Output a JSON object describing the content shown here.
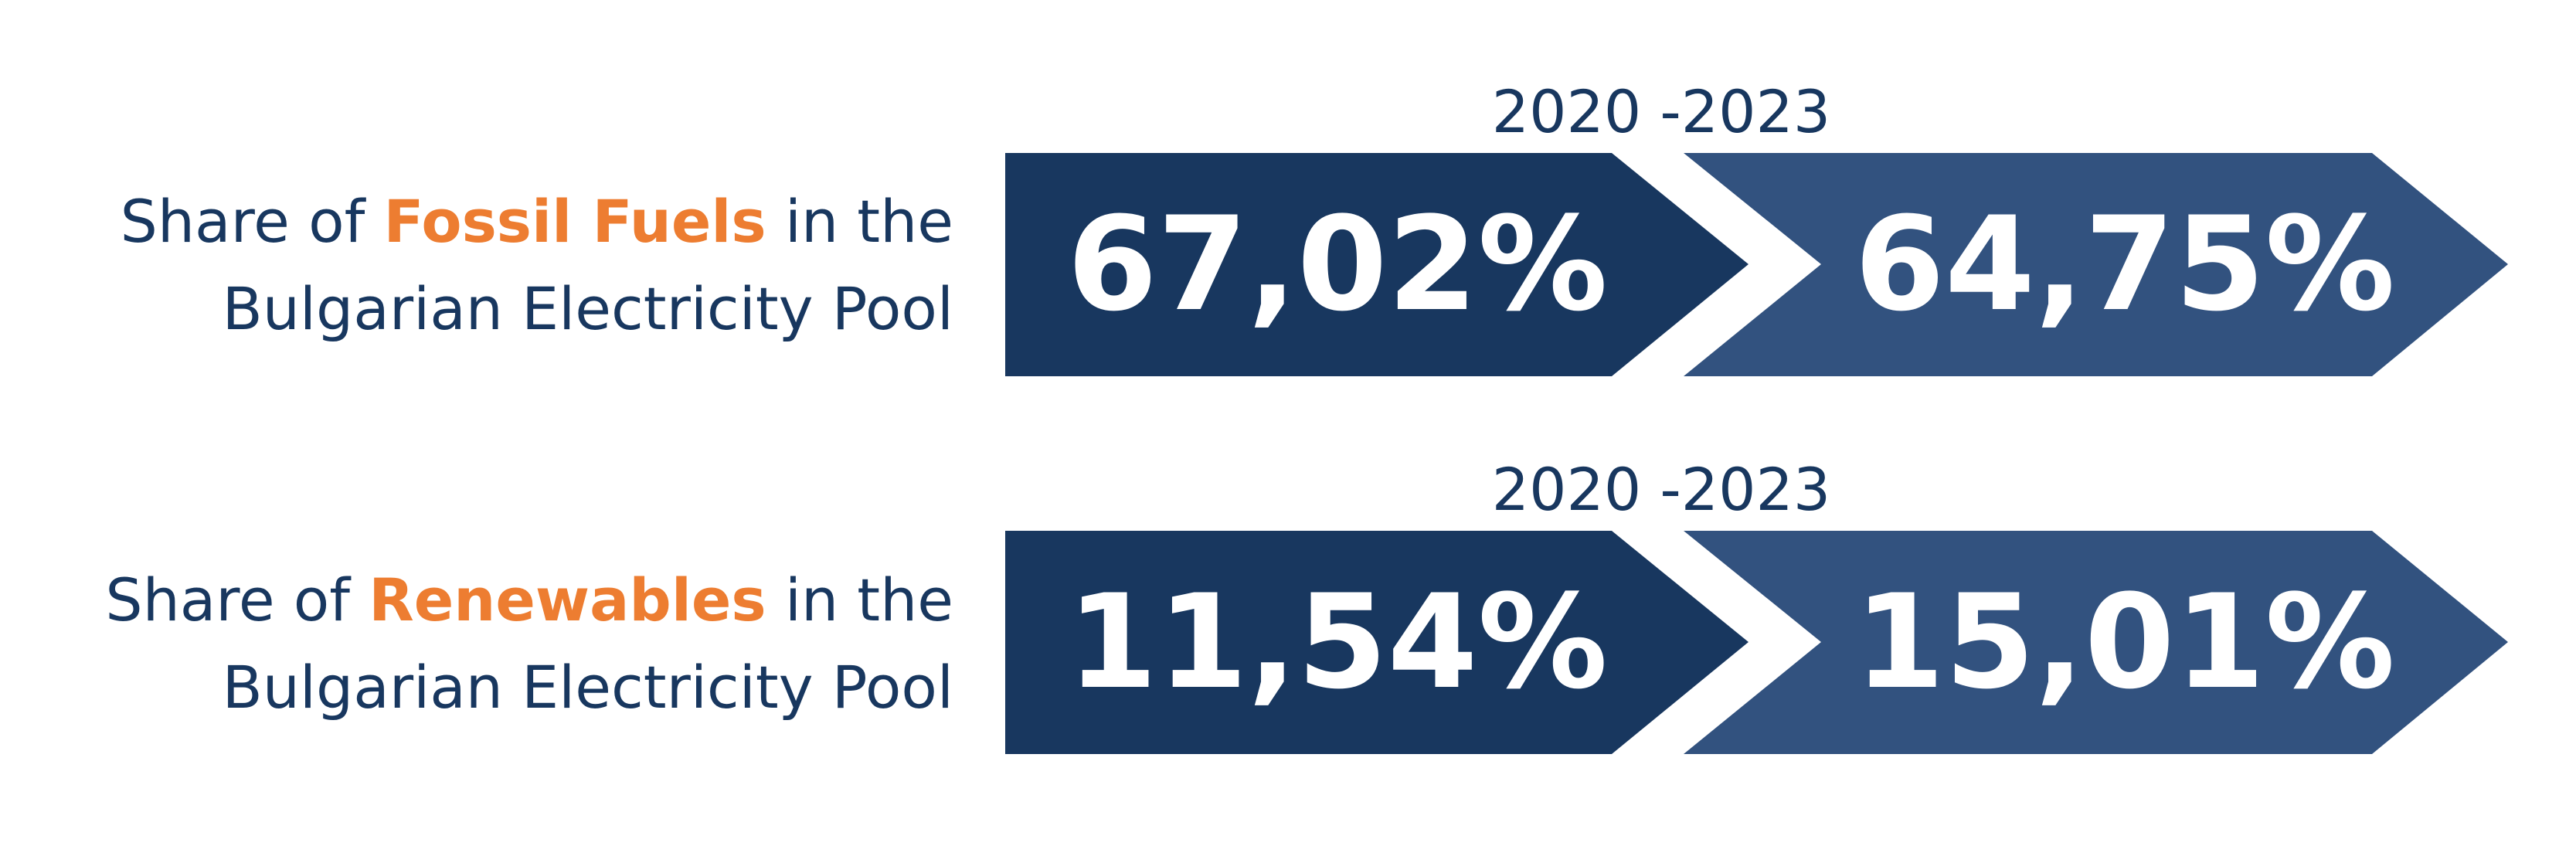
{
  "rows": [
    {
      "label_prefix": "Share of ",
      "label_highlight": "Fossil Fuels",
      "label_suffix": " in the",
      "label_line2": "Bulgarian Electricity Pool",
      "period": "2020 -2023",
      "value_start": "67,02%",
      "value_end": "64,75%"
    },
    {
      "label_prefix": "Share of ",
      "label_highlight": "Renewables",
      "label_suffix": " in the",
      "label_line2": "Bulgarian Electricity Pool",
      "period": "2020 -2023",
      "value_start": "11,54%",
      "value_end": "15,01%"
    }
  ],
  "colors": {
    "dark_arrow": "#18375F",
    "light_arrow": "#32527F",
    "highlight": "#ED7D31",
    "text": "#18375F"
  }
}
